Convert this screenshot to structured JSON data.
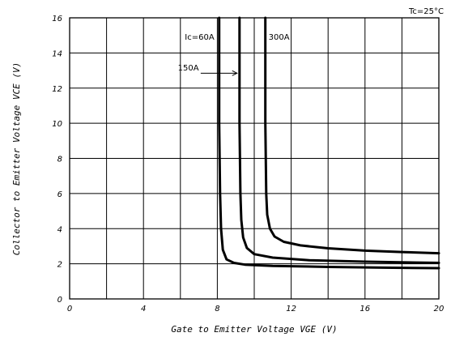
{
  "chart_data": {
    "type": "line",
    "xlabel": "Gate to Emitter Voltage VGE (V)",
    "ylabel": "Collector to Emitter Voltage VCE (V)",
    "xlim": [
      0,
      20
    ],
    "ylim": [
      0,
      16
    ],
    "x_ticks": [
      0,
      4,
      8,
      12,
      16,
      20
    ],
    "y_ticks": [
      0,
      2,
      4,
      6,
      8,
      10,
      12,
      14,
      16
    ],
    "grid": true,
    "condition": "Tc=25°C",
    "series": [
      {
        "name": "Ic=60A",
        "x": [
          8.1,
          8.1,
          8.15,
          8.2,
          8.3,
          8.5,
          8.9,
          9.5,
          11,
          14,
          17,
          20
        ],
        "y": [
          16,
          10,
          6,
          4,
          2.8,
          2.25,
          2.05,
          1.95,
          1.88,
          1.82,
          1.78,
          1.75
        ]
      },
      {
        "name": "150A",
        "x": [
          9.2,
          9.2,
          9.25,
          9.3,
          9.4,
          9.6,
          10,
          11,
          13,
          16,
          20
        ],
        "y": [
          16,
          10,
          6,
          4.5,
          3.5,
          2.9,
          2.55,
          2.35,
          2.2,
          2.12,
          2.05
        ]
      },
      {
        "name": "300A",
        "x": [
          10.6,
          10.6,
          10.65,
          10.7,
          10.85,
          11.1,
          11.6,
          12.5,
          14,
          16,
          18,
          20
        ],
        "y": [
          16,
          10,
          6,
          4.8,
          4,
          3.55,
          3.25,
          3.05,
          2.88,
          2.75,
          2.67,
          2.6
        ]
      }
    ]
  }
}
